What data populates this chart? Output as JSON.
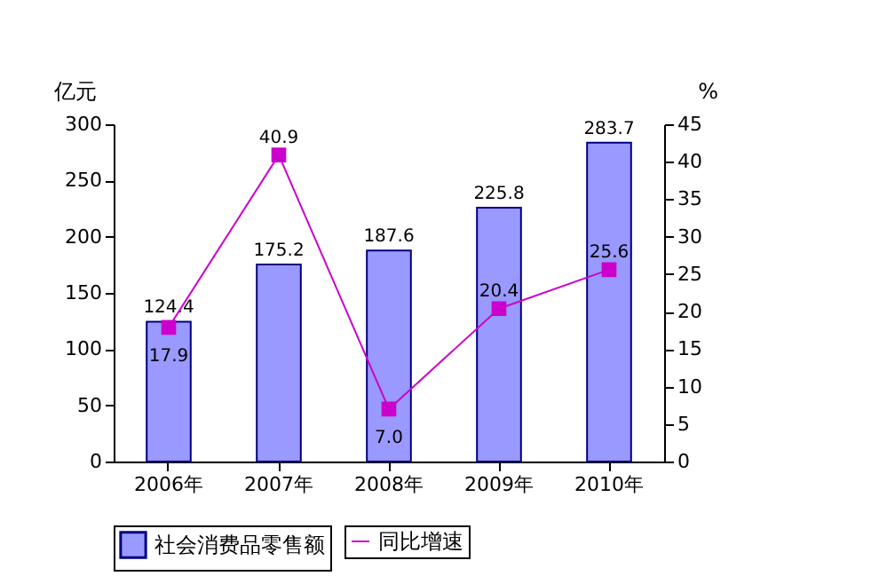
{
  "chart_data": {
    "type": "bar",
    "ylabel": "亿元",
    "y2label": "%",
    "categories": [
      "2006年",
      "2007年",
      "2008年",
      "2009年",
      "2010年"
    ],
    "series": [
      {
        "name": "社会消费品零售额",
        "color": "#9999ff",
        "values": [
          124.4,
          175.2,
          187.6,
          225.8,
          283.7
        ],
        "value_labels": [
          "124.4",
          "175.2",
          "187.6",
          "225.8",
          "283.7"
        ]
      },
      {
        "name": "同比增速",
        "type": "line",
        "axis": "y2",
        "color": "#cc00cc",
        "values": [
          17.9,
          40.9,
          7.0,
          20.4,
          25.6
        ],
        "value_labels": [
          "17.9",
          "40.9",
          "7.0",
          "20.4",
          "25.6"
        ]
      }
    ],
    "ylim": [
      0,
      300
    ],
    "yticks": [
      0,
      50,
      100,
      150,
      200,
      250,
      300
    ],
    "y2lim": [
      0,
      45
    ],
    "y2ticks": [
      0,
      5,
      10,
      15,
      20,
      25,
      30,
      35,
      40,
      45
    ],
    "legend": "bottom",
    "marker": "square",
    "grid": false
  }
}
